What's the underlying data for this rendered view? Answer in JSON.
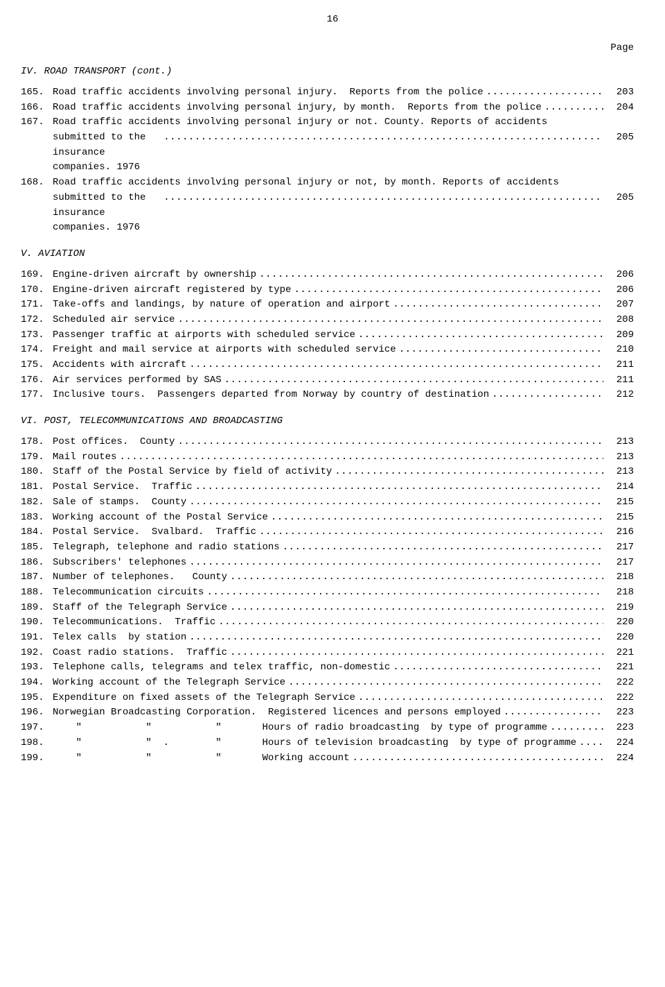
{
  "page_number": "16",
  "page_label": "Page",
  "sections": [
    {
      "heading": "IV.  ROAD TRANSPORT (cont.)",
      "entries": [
        {
          "num": "165.",
          "text": "Road traffic accidents involving personal injury.  Reports from the police",
          "page": "203"
        },
        {
          "num": "166.",
          "text": "Road traffic accidents involving personal injury, by month.  Reports from the police",
          "page": "204"
        },
        {
          "num": "167.",
          "text": "Road traffic accidents involving personal injury or not.  County.  Reports of accidents",
          "cont": "submitted to the insurance companies.  1976",
          "page": "205"
        },
        {
          "num": "168.",
          "text": "Road traffic accidents involving personal injury or not, by month.  Reports of accidents",
          "cont": "submitted to the insurance companies.  1976",
          "page": "205"
        }
      ]
    },
    {
      "heading": "V.  AVIATION",
      "entries": [
        {
          "num": "169.",
          "text": "Engine-driven aircraft by ownership",
          "page": "206"
        },
        {
          "num": "170.",
          "text": "Engine-driven aircraft registered by type",
          "page": "206"
        },
        {
          "num": "171.",
          "text": "Take-offs and landings, by nature of operation and airport",
          "page": "207"
        },
        {
          "num": "172.",
          "text": "Scheduled air service",
          "page": "208"
        },
        {
          "num": "173.",
          "text": "Passenger traffic at airports with scheduled service",
          "page": "209"
        },
        {
          "num": "174.",
          "text": "Freight and mail service at airports with scheduled service",
          "page": "210"
        },
        {
          "num": "175.",
          "text": "Accidents with aircraft",
          "page": "211"
        },
        {
          "num": "176.",
          "text": "Air services performed by SAS",
          "page": "211"
        },
        {
          "num": "177.",
          "text": "Inclusive tours.  Passengers departed from Norway by country of destination",
          "page": "212"
        }
      ]
    },
    {
      "heading": "VI.  POST, TELECOMMUNICATIONS AND BROADCASTING",
      "entries": [
        {
          "num": "178.",
          "text": "Post offices.  County",
          "page": "213"
        },
        {
          "num": "179.",
          "text": "Mail routes",
          "page": "213"
        },
        {
          "num": "180.",
          "text": "Staff of the Postal Service by field of activity",
          "page": "213"
        },
        {
          "num": "181.",
          "text": "Postal Service.  Traffic",
          "page": "214"
        },
        {
          "num": "182.",
          "text": "Sale of stamps.  County",
          "page": "215"
        },
        {
          "num": "183.",
          "text": "Working account of the Postal Service",
          "page": "215"
        },
        {
          "num": "184.",
          "text": "Postal Service.  Svalbard.  Traffic",
          "page": "216"
        },
        {
          "num": "185.",
          "text": "Telegraph, telephone and radio stations",
          "page": "217"
        },
        {
          "num": "186.",
          "text": "Subscribers' telephones",
          "page": "217"
        },
        {
          "num": "187.",
          "text": "Number of telephones.   County",
          "page": "218"
        },
        {
          "num": "188.",
          "text": "Telecommunication circuits",
          "page": "218"
        },
        {
          "num": "189.",
          "text": "Staff of the Telegraph Service",
          "page": "219"
        },
        {
          "num": "190.",
          "text": "Telecommunications.  Traffic",
          "page": "220"
        },
        {
          "num": "191.",
          "text": "Telex calls  by station",
          "page": "220"
        },
        {
          "num": "192.",
          "text": "Coast radio stations.  Traffic",
          "page": "221"
        },
        {
          "num": "193.",
          "text": "Telephone calls, telegrams and telex traffic, non-domestic",
          "page": "221"
        },
        {
          "num": "194.",
          "text": "Working account of the Telegraph Service",
          "page": "222"
        },
        {
          "num": "195.",
          "text": "Expenditure on fixed assets of the Telegraph Service",
          "page": "222"
        },
        {
          "num": "196.",
          "text": "Norwegian Broadcasting Corporation.  Registered licences and persons employed",
          "page": "223"
        },
        {
          "num": "197.",
          "text": "    \"           \"           \"       Hours of radio broadcasting  by type of programme",
          "page": "223"
        },
        {
          "num": "198.",
          "text": "    \"           \"  .        \"       Hours of television broadcasting  by type of programme",
          "page": "224"
        },
        {
          "num": "199.",
          "text": "    \"           \"           \"       Working account",
          "page": "224"
        }
      ]
    }
  ]
}
